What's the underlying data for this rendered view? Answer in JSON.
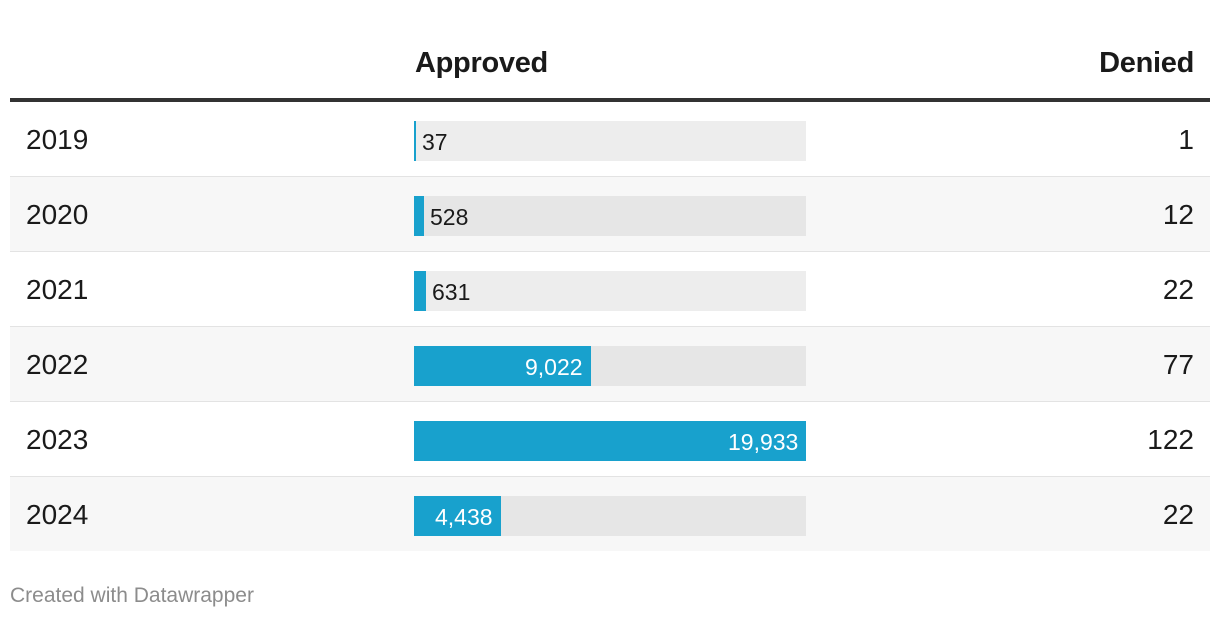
{
  "chart_data": {
    "type": "table",
    "columns": [
      "",
      "Approved",
      "Denied"
    ],
    "rows": [
      {
        "year": "2019",
        "approved": 37,
        "approved_label": "37",
        "denied": "1"
      },
      {
        "year": "2020",
        "approved": 528,
        "approved_label": "528",
        "denied": "12"
      },
      {
        "year": "2021",
        "approved": 631,
        "approved_label": "631",
        "denied": "22"
      },
      {
        "year": "2022",
        "approved": 9022,
        "approved_label": "9,022",
        "denied": "77"
      },
      {
        "year": "2023",
        "approved": 19933,
        "approved_label": "19,933",
        "denied": "122"
      },
      {
        "year": "2024",
        "approved": 4438,
        "approved_label": "4,438",
        "denied": "22"
      }
    ],
    "bar_max": 19933,
    "bar_color": "#18a1cd"
  },
  "footer": "Created with Datawrapper"
}
